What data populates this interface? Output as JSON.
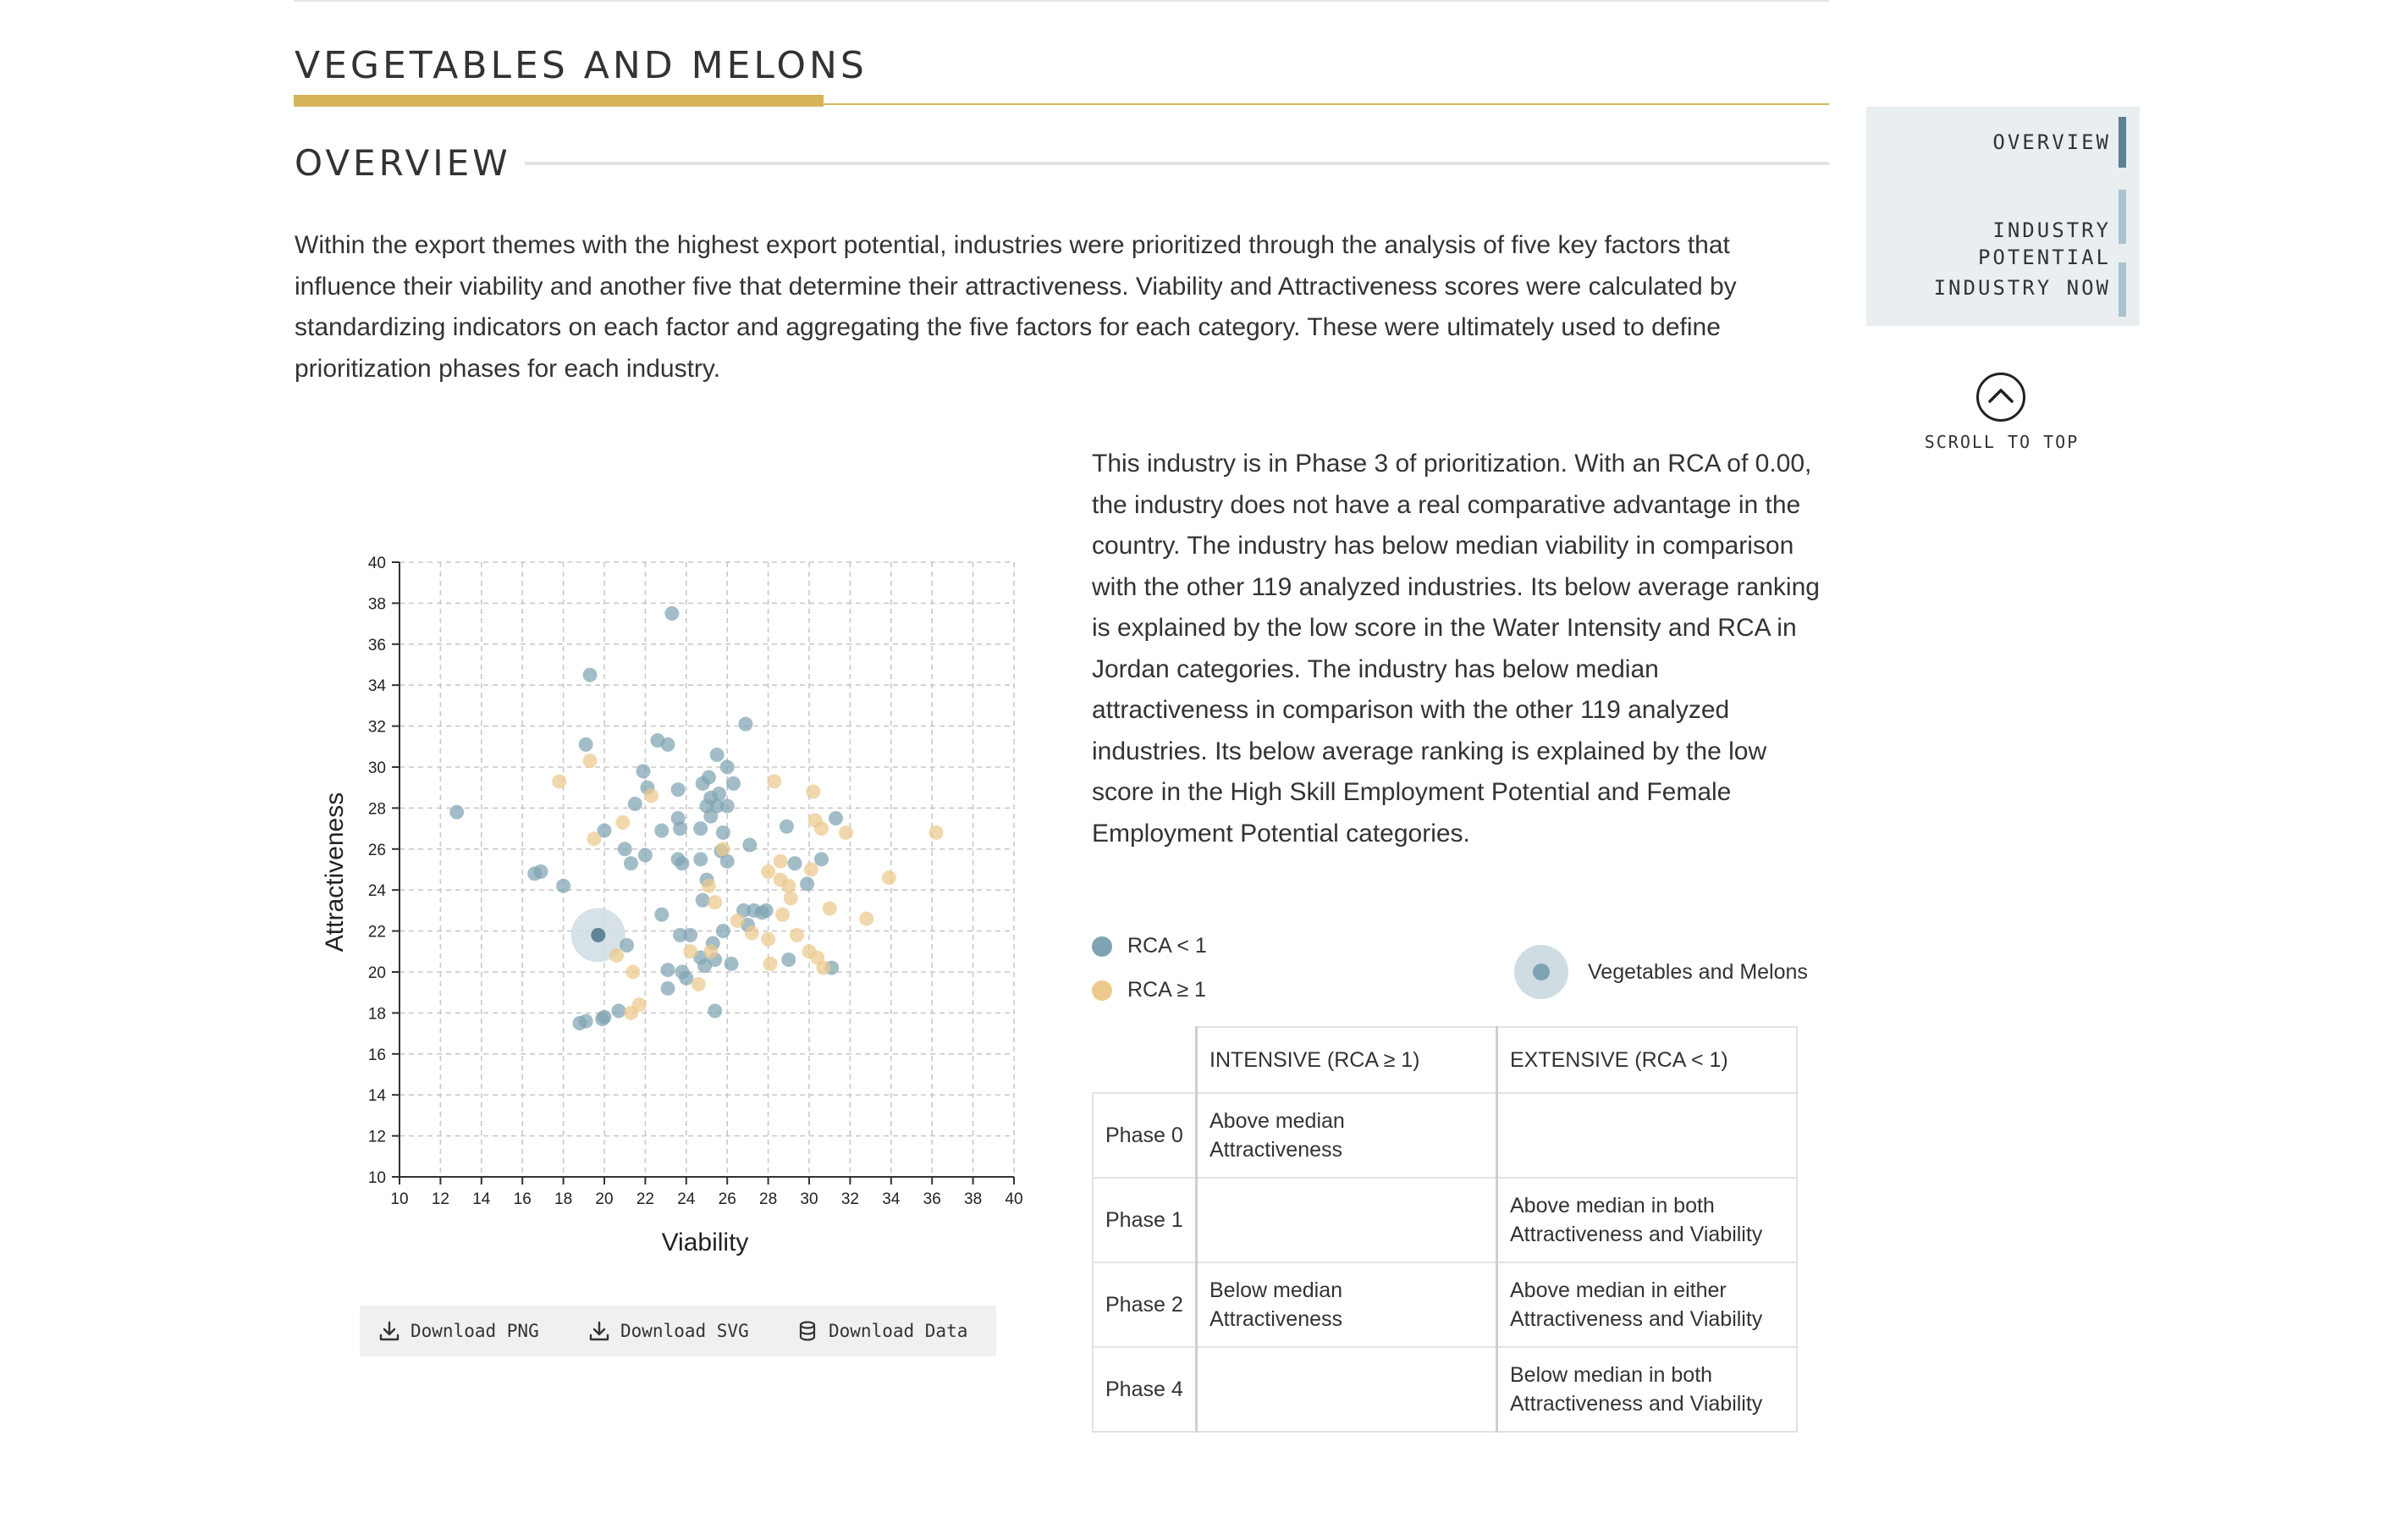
{
  "header": {
    "title": "VEGETABLES AND MELONS",
    "overview_title": "OVERVIEW"
  },
  "intro_text": "Within the export themes with the highest export potential, industries were prioritized through the analysis of five key factors that influence their viability and another five that determine their attractiveness. Viability and Attractiveness scores were calculated by standardizing indicators on each factor and aggregating the five factors for each category. These were ultimately used to define prioritization phases for each industry.",
  "description": "This industry is in Phase 3 of prioritization. With an RCA of 0.00, the industry does not have a real comparative advantage in the country. The industry has below median viability in comparison with the other 119 analyzed industries. Its below average ranking is explained by the low score in the Water Intensity and RCA in Jordan categories. The industry has below median attractiveness in comparison with the other 119 analyzed industries. Its below average ranking is explained by the low score in the High Skill Employment Potential and Female Employment Potential categories.",
  "nav": {
    "items": [
      {
        "label": "OVERVIEW",
        "active": true
      },
      {
        "label": "INDUSTRY\nPOTENTIAL",
        "active": false
      },
      {
        "label": "INDUSTRY NOW",
        "active": false
      }
    ],
    "scroll_top_label": "SCROLL TO TOP",
    "scroll_icon": "chevron-up-icon"
  },
  "colors": {
    "rca_below": "#7fa3b3",
    "rca_above": "#ecc98c",
    "highlight": "#cfdde3",
    "highlight_dot": "#5f8597",
    "title_accent": "#d7b45a",
    "nav_bg": "#e9eef1",
    "nav_active": "#5d8092",
    "nav_inactive": "#a9c3ce"
  },
  "chart_data": {
    "type": "scatter",
    "xlabel": "Viability",
    "ylabel": "Attractiveness",
    "xlim": [
      10,
      40
    ],
    "ylim": [
      10,
      40
    ],
    "xticks": [
      10,
      12,
      14,
      16,
      18,
      20,
      22,
      24,
      26,
      28,
      30,
      32,
      34,
      36,
      38,
      40
    ],
    "yticks": [
      10,
      12,
      14,
      16,
      18,
      20,
      22,
      24,
      26,
      28,
      30,
      32,
      34,
      36,
      38,
      40
    ],
    "grid": true,
    "series": [
      {
        "name": "RCA < 1",
        "color": "#7fa3b3",
        "points": [
          [
            23.3,
            37.5
          ],
          [
            19.3,
            34.5
          ],
          [
            12.8,
            27.8
          ],
          [
            26.9,
            32.1
          ],
          [
            19.1,
            31.1
          ],
          [
            22.6,
            31.3
          ],
          [
            23.1,
            31.1
          ],
          [
            25.5,
            30.6
          ],
          [
            21.9,
            29.8
          ],
          [
            26.0,
            30.0
          ],
          [
            24.8,
            29.2
          ],
          [
            25.1,
            29.5
          ],
          [
            26.3,
            29.2
          ],
          [
            22.1,
            29.0
          ],
          [
            23.6,
            28.9
          ],
          [
            25.2,
            28.5
          ],
          [
            25.6,
            28.7
          ],
          [
            21.5,
            28.2
          ],
          [
            25.0,
            28.1
          ],
          [
            25.5,
            28.1
          ],
          [
            26.0,
            28.1
          ],
          [
            25.2,
            27.6
          ],
          [
            23.6,
            27.5
          ],
          [
            28.9,
            27.1
          ],
          [
            31.3,
            27.5
          ],
          [
            30.6,
            25.5
          ],
          [
            24.7,
            27.0
          ],
          [
            23.7,
            27.0
          ],
          [
            25.8,
            26.8
          ],
          [
            20.0,
            26.9
          ],
          [
            22.8,
            26.9
          ],
          [
            27.1,
            26.2
          ],
          [
            21.0,
            26.0
          ],
          [
            22.0,
            25.7
          ],
          [
            25.7,
            25.9
          ],
          [
            23.8,
            25.3
          ],
          [
            23.6,
            25.5
          ],
          [
            24.7,
            25.5
          ],
          [
            26.0,
            25.4
          ],
          [
            29.3,
            25.3
          ],
          [
            21.3,
            25.3
          ],
          [
            16.9,
            24.9
          ],
          [
            16.6,
            24.8
          ],
          [
            25.0,
            24.5
          ],
          [
            18.0,
            24.2
          ],
          [
            29.9,
            24.3
          ],
          [
            24.8,
            23.5
          ],
          [
            22.8,
            22.8
          ],
          [
            26.8,
            23.0
          ],
          [
            27.3,
            23.0
          ],
          [
            27.9,
            23.0
          ],
          [
            27.7,
            22.9
          ],
          [
            27.0,
            22.3
          ],
          [
            25.8,
            22.0
          ],
          [
            23.7,
            21.8
          ],
          [
            24.2,
            21.8
          ],
          [
            21.1,
            21.3
          ],
          [
            25.3,
            21.4
          ],
          [
            24.7,
            20.7
          ],
          [
            24.9,
            20.3
          ],
          [
            25.4,
            20.6
          ],
          [
            26.2,
            20.4
          ],
          [
            29.0,
            20.6
          ],
          [
            31.1,
            20.2
          ],
          [
            23.1,
            20.1
          ],
          [
            23.8,
            20.0
          ],
          [
            23.1,
            19.2
          ],
          [
            24.0,
            19.7
          ],
          [
            25.4,
            18.1
          ],
          [
            20.7,
            18.1
          ],
          [
            19.9,
            17.7
          ],
          [
            19.1,
            17.6
          ],
          [
            18.8,
            17.5
          ],
          [
            20.0,
            17.8
          ]
        ]
      },
      {
        "name": "RCA ≥ 1",
        "color": "#ecc98c",
        "points": [
          [
            17.8,
            29.3
          ],
          [
            19.3,
            30.3
          ],
          [
            28.3,
            29.3
          ],
          [
            30.2,
            28.8
          ],
          [
            22.3,
            28.6
          ],
          [
            20.9,
            27.3
          ],
          [
            30.3,
            27.4
          ],
          [
            30.6,
            27.0
          ],
          [
            31.8,
            26.8
          ],
          [
            19.5,
            26.5
          ],
          [
            25.8,
            26.0
          ],
          [
            36.2,
            26.8
          ],
          [
            28.6,
            25.4
          ],
          [
            30.1,
            25.0
          ],
          [
            28.0,
            24.9
          ],
          [
            28.6,
            24.5
          ],
          [
            25.1,
            24.2
          ],
          [
            29.0,
            24.2
          ],
          [
            29.1,
            23.6
          ],
          [
            25.4,
            23.4
          ],
          [
            31.0,
            23.1
          ],
          [
            28.7,
            22.8
          ],
          [
            33.9,
            24.6
          ],
          [
            32.8,
            22.6
          ],
          [
            26.5,
            22.5
          ],
          [
            27.2,
            21.9
          ],
          [
            28.0,
            21.6
          ],
          [
            29.4,
            21.8
          ],
          [
            30.0,
            21.0
          ],
          [
            28.1,
            20.4
          ],
          [
            30.7,
            20.2
          ],
          [
            30.4,
            20.7
          ],
          [
            20.6,
            20.8
          ],
          [
            25.2,
            21.0
          ],
          [
            24.2,
            21.0
          ],
          [
            21.4,
            20.0
          ],
          [
            21.7,
            18.4
          ],
          [
            21.3,
            18.0
          ],
          [
            24.6,
            19.4
          ]
        ]
      }
    ],
    "highlight": {
      "name": "Vegetables and Melons",
      "point": [
        19.7,
        21.8
      ]
    }
  },
  "downloads": [
    {
      "label": "Download PNG",
      "icon": "download-icon"
    },
    {
      "label": "Download SVG",
      "icon": "download-icon"
    },
    {
      "label": "Download Data",
      "icon": "database-icon"
    }
  ],
  "legend": {
    "rca_below": "RCA < 1",
    "rca_above": "RCA ≥ 1",
    "highlight": "Vegetables and Melons"
  },
  "phase_table": {
    "headers": [
      "",
      "INTENSIVE (RCA ≥ 1)",
      "EXTENSIVE (RCA < 1)"
    ],
    "rows": [
      [
        "Phase 0",
        "Above median\nAttractiveness",
        ""
      ],
      [
        "Phase 1",
        "",
        "Above median in both\nAttractiveness and Viability"
      ],
      [
        "Phase 2",
        "Below median\nAttractiveness",
        "Above median in either\nAttractiveness and Viability"
      ],
      [
        "Phase 4",
        "",
        "Below median in both\nAttractiveness and Viability"
      ]
    ]
  }
}
